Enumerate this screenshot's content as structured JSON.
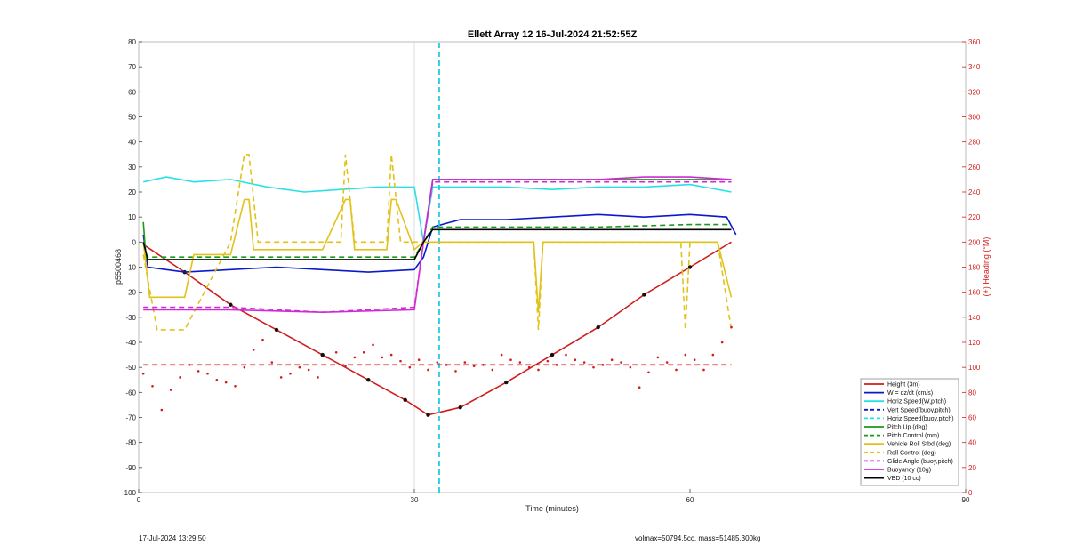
{
  "chart_data": {
    "type": "line",
    "title": "Ellett Array 12 16-Jul-2024 21:52:55Z",
    "xlabel": "Time (minutes)",
    "ylabel_left": "p5500468",
    "ylabel_right": "(+) Heading (°M)",
    "xlim": [
      0,
      90
    ],
    "ylim_left": [
      -100,
      80
    ],
    "ylim_right": [
      0,
      360
    ],
    "x_ticks": [
      0,
      30,
      60,
      90
    ],
    "y_ticks_left": [
      80,
      70,
      60,
      50,
      40,
      30,
      20,
      10,
      0,
      -10,
      -20,
      -30,
      -40,
      -50,
      -60,
      -70,
      -80,
      -90,
      -100
    ],
    "y_ticks_right": [
      360,
      340,
      320,
      300,
      280,
      260,
      240,
      220,
      200,
      180,
      160,
      140,
      120,
      100,
      80,
      60,
      40,
      20,
      0
    ],
    "legend_position": "bottom-right",
    "series": [
      {
        "name": "Height (3m)",
        "color": "#d11c1c",
        "style": "solid",
        "x": [
          0.5,
          5,
          10,
          15,
          20,
          25,
          29,
          31.5,
          35,
          40,
          45,
          50,
          55,
          60,
          64.5
        ],
        "y": [
          -1,
          -12,
          -25,
          -35,
          -45,
          -55,
          -63,
          -69,
          -66,
          -56,
          -45,
          -34,
          -21,
          -10,
          0
        ]
      },
      {
        "name": "W = dz/dt (cm/s)",
        "color": "#0b19c9",
        "style": "solid",
        "x": [
          0.5,
          1,
          5,
          10,
          15,
          20,
          25,
          30,
          31,
          32,
          35,
          40,
          45,
          50,
          55,
          60,
          64,
          65
        ],
        "y": [
          3,
          -10,
          -12,
          -11,
          -10,
          -11,
          -12,
          -11,
          -6,
          6,
          9,
          9,
          10,
          11,
          10,
          11,
          10,
          3
        ]
      },
      {
        "name": "Horiz Speed(W,pitch)",
        "color": "#29e0e6",
        "style": "solid",
        "x": [
          0.5,
          3,
          6,
          10,
          14,
          18,
          22,
          26,
          30,
          31,
          32,
          36,
          40,
          45,
          50,
          55,
          60,
          64.5
        ],
        "y": [
          24,
          26,
          24,
          25,
          22,
          20,
          21,
          22,
          22,
          0,
          22,
          22,
          22,
          21,
          22,
          22,
          23,
          20
        ]
      },
      {
        "name": "Vert Speed(buoy,pitch)",
        "color": "#0b19c9",
        "style": "dashed",
        "x": [
          32.7,
          32.7
        ],
        "y": [
          -100,
          80
        ]
      },
      {
        "name": "Horiz Speed(buoy,pitch)",
        "color": "#29e0e6",
        "style": "dashed",
        "x": [
          32.7,
          32.7
        ],
        "y": [
          -100,
          80
        ]
      },
      {
        "name": "Pitch Up (deg)",
        "color": "#1a9a1a",
        "style": "solid",
        "x": [
          0.5,
          0.8,
          5,
          10,
          15,
          20,
          25,
          30,
          31,
          32,
          35,
          40,
          45,
          50,
          55,
          60,
          64.5
        ],
        "y": [
          8,
          -7,
          -7,
          -7,
          -7,
          -7,
          -7,
          -7,
          0,
          25,
          25,
          25,
          25,
          25,
          25,
          25,
          25
        ]
      },
      {
        "name": "Pitch Control (mm)",
        "color": "#1a9a1a",
        "style": "dashed",
        "x": [
          0.5,
          5,
          10,
          20,
          30,
          31,
          32,
          40,
          50,
          60,
          64.5
        ],
        "y": [
          -6,
          -6,
          -6,
          -6,
          -6,
          0,
          6,
          6,
          6,
          7,
          7
        ]
      },
      {
        "name": "Vehicle Roll Stbd (deg)",
        "color": "#e2c21a",
        "style": "solid",
        "x": [
          0.5,
          1.2,
          5,
          6,
          10,
          11.5,
          12,
          12.5,
          20,
          22.5,
          23,
          23.5,
          27,
          27.5,
          28,
          30,
          31,
          33,
          40,
          43,
          43.5,
          44,
          50,
          55,
          60,
          63,
          64.5
        ],
        "y": [
          0,
          -22,
          -22,
          -5,
          -5,
          17,
          17,
          -3,
          -3,
          17,
          17,
          -3,
          -3,
          17,
          17,
          -3,
          0,
          0,
          0,
          0,
          -28,
          0,
          0,
          0,
          0,
          0,
          -22
        ]
      },
      {
        "name": "Roll Control (deg)",
        "color": "#e2c21a",
        "style": "dashed",
        "x": [
          0.5,
          2,
          5,
          10,
          11.5,
          12,
          13,
          22,
          22.5,
          23.5,
          27,
          27.5,
          28.5,
          30,
          32,
          40,
          43,
          43.5,
          44,
          55,
          59,
          59.5,
          60,
          63,
          64.5
        ],
        "y": [
          -5,
          -35,
          -35,
          0,
          35,
          35,
          0,
          0,
          35,
          0,
          0,
          35,
          0,
          0,
          0,
          0,
          0,
          -35,
          0,
          0,
          0,
          -35,
          0,
          0,
          -35
        ]
      },
      {
        "name": "Glide Angle (buoy,pitch)",
        "color": "#d02ad6",
        "style": "dashed",
        "x": [
          0.5,
          5,
          10,
          20,
          30,
          31,
          32,
          40,
          50,
          60,
          64.5
        ],
        "y": [
          -26,
          -26,
          -26,
          -28,
          -26,
          0,
          24,
          24,
          24,
          24,
          24
        ]
      },
      {
        "name": "Buoyancy (10g)",
        "color": "#d02ad6",
        "style": "solid",
        "x": [
          0.5,
          5,
          10,
          20,
          30,
          31,
          32,
          40,
          50,
          55,
          60,
          64.5
        ],
        "y": [
          -27,
          -27,
          -27,
          -28,
          -27,
          0,
          25,
          25,
          25,
          26,
          26,
          25
        ]
      },
      {
        "name": "VBD (10 cc)",
        "color": "#000000",
        "style": "solid",
        "x": [
          0.5,
          1,
          5,
          10,
          20,
          30,
          31,
          32,
          40,
          50,
          60,
          64.5
        ],
        "y": [
          0,
          -7,
          -7,
          -7,
          -7,
          -7,
          0,
          5,
          5,
          5,
          5,
          5
        ]
      }
    ],
    "heading_series": {
      "name": "Heading",
      "color": "#d11c1c",
      "axis": "right",
      "x": [
        0.5,
        1.5,
        2.5,
        3.5,
        4.5,
        5.5,
        6.5,
        7.5,
        8.5,
        9.5,
        10.5,
        11.5,
        12.5,
        13.5,
        14.5,
        15.5,
        16.5,
        17.5,
        18.5,
        19.5,
        20.5,
        21.5,
        22.5,
        23.5,
        24.5,
        25.5,
        26.5,
        27.5,
        28.5,
        29.5,
        30.5,
        31.5,
        32.5,
        33.5,
        34.5,
        35.5,
        36.5,
        37.5,
        38.5,
        39.5,
        40.5,
        41.5,
        42.5,
        43.5,
        44.5,
        45.5,
        46.5,
        47.5,
        48.5,
        49.5,
        50.5,
        51.5,
        52.5,
        53.5,
        54.5,
        55.5,
        56.5,
        57.5,
        58.5,
        59.5,
        60.5,
        61.5,
        62.5,
        63.5,
        64.5
      ],
      "y": [
        95,
        85,
        66,
        82,
        92,
        102,
        97,
        95,
        90,
        88,
        85,
        100,
        114,
        122,
        104,
        92,
        95,
        100,
        98,
        92,
        108,
        112,
        101,
        108,
        112,
        118,
        108,
        110,
        105,
        100,
        106,
        98,
        104,
        102,
        97,
        104,
        101,
        102,
        98,
        110,
        106,
        104,
        100,
        98,
        105,
        102,
        110,
        106,
        104,
        100,
        102,
        106,
        104,
        100,
        84,
        96,
        108,
        104,
        98,
        110,
        106,
        98,
        110,
        120,
        132
      ]
    },
    "heading_reference": {
      "color": "#d11c1c",
      "style": "dashed",
      "axis": "right",
      "value": 102
    },
    "vertical_markers": [
      {
        "x": 30,
        "color": "#dddddd"
      }
    ]
  },
  "footer": {
    "timestamp": "17-Jul-2024 13:29:50",
    "info": "volmax=50794.5cc, mass=51485.300kg"
  }
}
